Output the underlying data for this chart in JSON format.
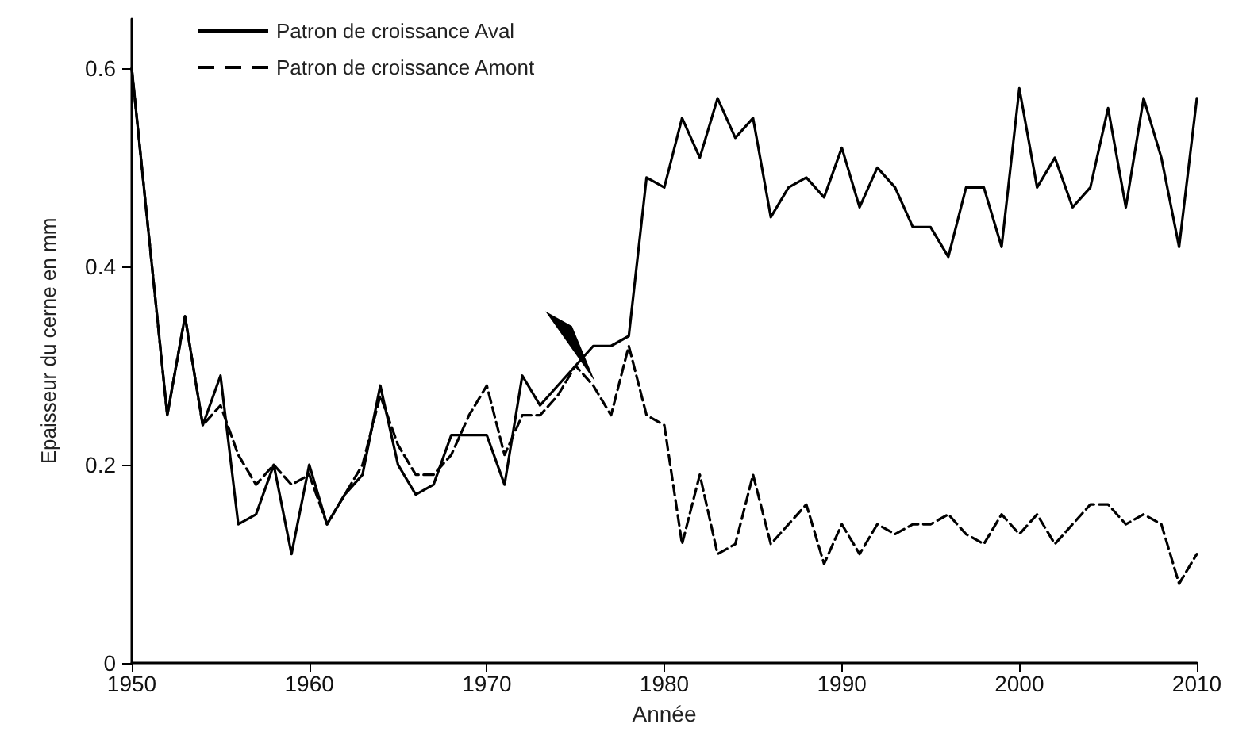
{
  "chart_data": {
    "type": "line",
    "xlabel": "Année",
    "ylabel": "Epaisseur du cerne en mm",
    "x": [
      1950,
      1952,
      1953,
      1954,
      1955,
      1956,
      1957,
      1958,
      1959,
      1960,
      1961,
      1962,
      1963,
      1964,
      1965,
      1966,
      1967,
      1968,
      1969,
      1970,
      1971,
      1972,
      1973,
      1974,
      1975,
      1976,
      1977,
      1978,
      1979,
      1980,
      1981,
      1982,
      1983,
      1984,
      1985,
      1986,
      1987,
      1988,
      1989,
      1990,
      1991,
      1992,
      1993,
      1994,
      1995,
      1996,
      1997,
      1998,
      1999,
      2000,
      2001,
      2002,
      2003,
      2004,
      2005,
      2006,
      2007,
      2008,
      2009,
      2010
    ],
    "series": [
      {
        "name": "Patron de croissance Aval",
        "color": "#000000",
        "line_style": "solid",
        "values": [
          0.6,
          0.25,
          0.35,
          0.24,
          0.29,
          0.14,
          0.15,
          0.2,
          0.11,
          0.2,
          0.14,
          0.17,
          0.19,
          0.28,
          0.2,
          0.17,
          0.18,
          0.23,
          0.23,
          0.23,
          0.18,
          0.29,
          0.26,
          0.28,
          0.3,
          0.32,
          0.32,
          0.33,
          0.49,
          0.48,
          0.55,
          0.51,
          0.57,
          0.53,
          0.55,
          0.45,
          0.48,
          0.49,
          0.47,
          0.52,
          0.46,
          0.5,
          0.48,
          0.44,
          0.44,
          0.41,
          0.48,
          0.48,
          0.42,
          0.58,
          0.48,
          0.51,
          0.46,
          0.48,
          0.56,
          0.46,
          0.57,
          0.51,
          0.42,
          0.57
        ]
      },
      {
        "name": "Patron de croissance Amont",
        "color": "#000000",
        "line_style": "dashed",
        "values": [
          0.6,
          0.25,
          0.35,
          0.24,
          0.26,
          0.21,
          0.18,
          0.2,
          0.18,
          0.19,
          0.14,
          0.17,
          0.2,
          0.27,
          0.22,
          0.19,
          0.19,
          0.21,
          0.25,
          0.28,
          0.21,
          0.25,
          0.25,
          0.27,
          0.3,
          0.28,
          0.25,
          0.32,
          0.25,
          0.24,
          0.12,
          0.19,
          0.11,
          0.12,
          0.19,
          0.12,
          0.14,
          0.16,
          0.1,
          0.14,
          0.11,
          0.14,
          0.13,
          0.14,
          0.14,
          0.15,
          0.13,
          0.12,
          0.15,
          0.13,
          0.15,
          0.12,
          0.14,
          0.16,
          0.16,
          0.14,
          0.15,
          0.14,
          0.08,
          0.11
        ]
      }
    ],
    "xlim": [
      1950,
      2010
    ],
    "xticks": [
      1950,
      1960,
      1970,
      1980,
      1990,
      2000,
      2010
    ],
    "ylim": [
      0,
      0.65
    ],
    "yticks": [
      0,
      0.2,
      0.4,
      0.6
    ],
    "grid": false,
    "legend": "top left",
    "marker": "none"
  }
}
